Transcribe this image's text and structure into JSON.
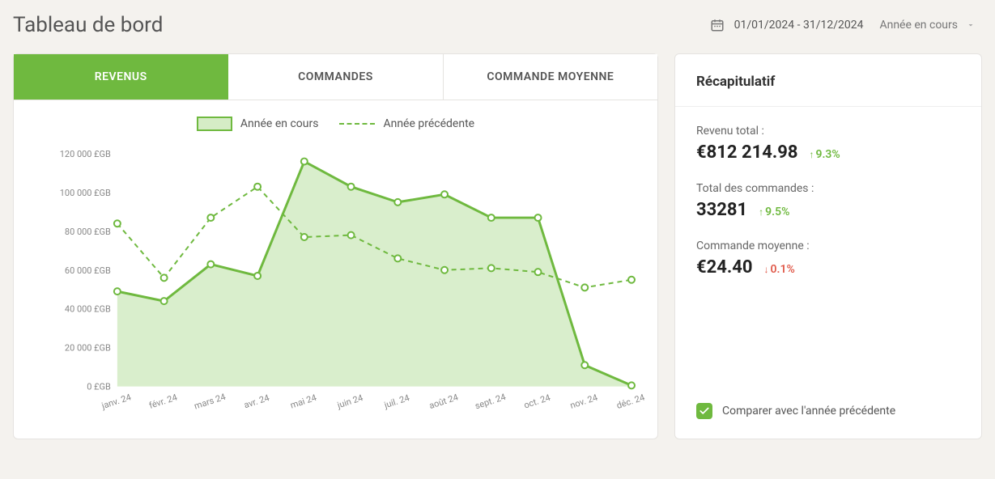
{
  "header": {
    "title": "Tableau de bord",
    "date_range": "01/01/2024 - 31/12/2024",
    "period_selector": "Année en cours"
  },
  "tabs": {
    "revenues": "REVENUS",
    "orders": "COMMANDES",
    "avg_order": "COMMANDE MOYENNE",
    "active_index": 0
  },
  "legend": {
    "current": "Année en cours",
    "previous": "Année précédente"
  },
  "chart": {
    "type": "line",
    "currency_suffix": "£GB",
    "y_ticks": [
      0,
      20000,
      40000,
      60000,
      80000,
      100000,
      120000
    ],
    "y_tick_labels": [
      "0 £GB",
      "20 000 £GB",
      "40 000 £GB",
      "60 000 £GB",
      "80 000 £GB",
      "100 000 £GB",
      "120 000 £GB"
    ],
    "ylim": [
      0,
      125000
    ],
    "x_labels": [
      "janv. 24",
      "févr. 24",
      "mars 24",
      "avr. 24",
      "mai 24",
      "juin 24",
      "juil. 24",
      "août 24",
      "sept. 24",
      "oct. 24",
      "nov. 24",
      "déc. 24"
    ],
    "series_current": [
      49000,
      44000,
      63000,
      57000,
      116000,
      103000,
      95000,
      99000,
      87000,
      87000,
      11000,
      500
    ],
    "series_previous": [
      84000,
      56000,
      87000,
      103000,
      77000,
      78000,
      66000,
      60000,
      61000,
      59000,
      51000,
      55000
    ],
    "colors": {
      "line": "#6fb93f",
      "fill": "#d5ecc6",
      "marker_fill": "#ffffff",
      "axis_text": "#888888",
      "background": "#ffffff"
    },
    "line_width_current": 3,
    "line_width_previous": 2,
    "marker_radius": 4
  },
  "summary": {
    "title": "Récapitulatif",
    "revenue_label": "Revenu total :",
    "revenue_value": "€812 214.98",
    "revenue_delta": "9.3%",
    "revenue_dir": "up",
    "orders_label": "Total des commandes :",
    "orders_value": "33281",
    "orders_delta": "9.5%",
    "orders_dir": "up",
    "avg_label": "Commande moyenne :",
    "avg_value": "€24.40",
    "avg_delta": "0.1%",
    "avg_dir": "down",
    "compare_label": "Comparer avec l'année précédente",
    "compare_checked": true
  },
  "style": {
    "accent": "#6fb93f",
    "danger": "#e05a4a",
    "card_border": "#e5e3e0",
    "page_bg": "#f4f2ee"
  }
}
